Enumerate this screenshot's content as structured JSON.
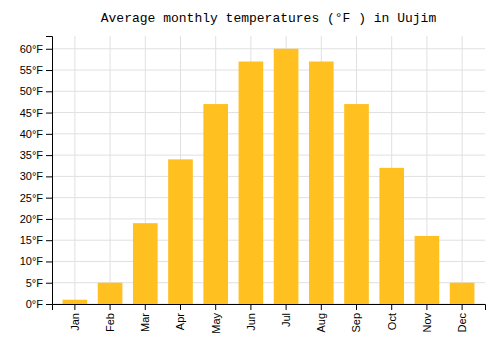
{
  "chart_data": {
    "type": "bar",
    "title": "Average monthly temperatures (°F ) in Uujim",
    "categories": [
      "Jan",
      "Feb",
      "Mar",
      "Apr",
      "May",
      "Jun",
      "Jul",
      "Aug",
      "Sep",
      "Oct",
      "Nov",
      "Dec"
    ],
    "values": [
      1,
      5,
      19,
      34,
      47,
      57,
      60,
      57,
      47,
      32,
      16,
      5
    ],
    "color": "#FFC020",
    "ylim": [
      0,
      63
    ],
    "yticks": [
      {
        "value": 0,
        "label": "0°F"
      },
      {
        "value": 5,
        "label": "5°F"
      },
      {
        "value": 10,
        "label": "10°F"
      },
      {
        "value": 15,
        "label": "15°F"
      },
      {
        "value": 20,
        "label": "20°F"
      },
      {
        "value": 25,
        "label": "25°F"
      },
      {
        "value": 30,
        "label": "30°F"
      },
      {
        "value": 35,
        "label": "35°F"
      },
      {
        "value": 40,
        "label": "40°F"
      },
      {
        "value": 45,
        "label": "45°F"
      },
      {
        "value": 50,
        "label": "50°F"
      },
      {
        "value": 55,
        "label": "55°F"
      },
      {
        "value": 60,
        "label": "60°F"
      }
    ],
    "grid": true
  }
}
